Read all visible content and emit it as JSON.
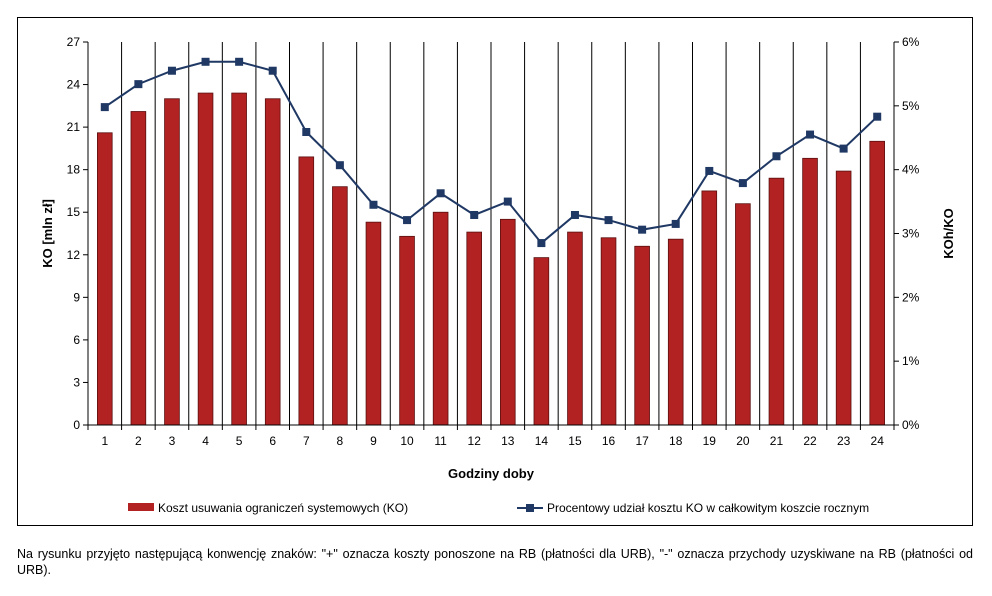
{
  "chart_data": {
    "type": "bar",
    "categories": [
      "1",
      "2",
      "3",
      "4",
      "5",
      "6",
      "7",
      "8",
      "9",
      "10",
      "11",
      "12",
      "13",
      "14",
      "15",
      "16",
      "17",
      "18",
      "19",
      "20",
      "21",
      "22",
      "23",
      "24"
    ],
    "series": [
      {
        "name": "Koszt usuwania ograniczeń systemowych (KO)",
        "type": "bar",
        "axis": "left",
        "color": "#b22222",
        "values": [
          20.6,
          22.1,
          23.0,
          23.4,
          23.4,
          23.0,
          18.9,
          16.8,
          14.3,
          13.3,
          15.0,
          13.6,
          14.5,
          11.8,
          13.6,
          13.2,
          12.6,
          13.1,
          16.5,
          15.6,
          17.4,
          18.8,
          17.9,
          20.0
        ]
      },
      {
        "name": "Procentowy udział kosztu KO w całkowitym koszcie rocznym",
        "type": "line",
        "axis": "right",
        "color": "#1f3864",
        "values": [
          4.98,
          5.34,
          5.55,
          5.69,
          5.69,
          5.55,
          4.59,
          4.07,
          3.45,
          3.21,
          3.63,
          3.29,
          3.5,
          2.85,
          3.29,
          3.21,
          3.06,
          3.15,
          3.98,
          3.79,
          4.21,
          4.55,
          4.33,
          4.83
        ]
      }
    ],
    "xlabel": "Godziny doby",
    "ylabel": "KO [mln zł]",
    "ylabel_right": "KOh/KO",
    "ylim": [
      0,
      27
    ],
    "yticks": [
      "0",
      "3",
      "6",
      "9",
      "12",
      "15",
      "18",
      "21",
      "24",
      "27"
    ],
    "ylim_right": [
      0,
      6
    ],
    "yticks_right": [
      "0%",
      "1%",
      "2%",
      "3%",
      "4%",
      "5%",
      "6%"
    ],
    "grid": "vertical",
    "legend_position": "bottom"
  },
  "footnote": "Na rysunku przyjęto następującą konwencję znaków: \"+\" oznacza koszty ponoszone na RB (płatności dla URB), \"-\" oznacza przychody uzyskiwane na RB (płatności od URB)."
}
